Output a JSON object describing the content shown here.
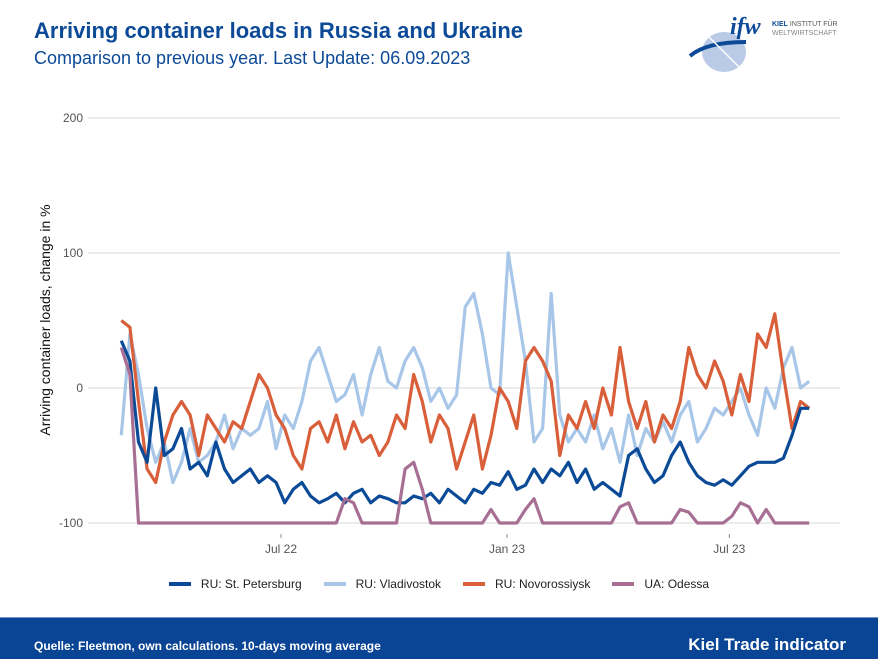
{
  "header": {
    "title": "Arriving container loads in Russia and Ukraine",
    "subtitle": "Comparison to previous year. Last Update: 06.09.2023",
    "logo_text": "ifw KIEL INSTITUT FÜR WELTWIRTSCHAFT"
  },
  "footer": {
    "source": "Quelle: Fleetmon, own calculations. 10-days moving average",
    "brand": "Kiel Trade indicator"
  },
  "chart_data": {
    "type": "line",
    "title": "Arriving container loads in Russia and Ukraine",
    "xlabel": "",
    "ylabel": "Arriving container loads, change in %",
    "ylim": [
      -110,
      205
    ],
    "yticks": [
      200,
      100,
      0,
      -100
    ],
    "ytick_labels": [
      "200",
      "100",
      "0",
      "-100"
    ],
    "xticks": [
      "2022-07-01",
      "2023-01-01",
      "2023-07-01"
    ],
    "xtick_labels": [
      "Jul 22",
      "Jan 23",
      "Jul 23"
    ],
    "grid": "horizontal",
    "legend_position": "bottom",
    "x": [
      "2022-02-21",
      "2022-02-28",
      "2022-03-07",
      "2022-03-14",
      "2022-03-21",
      "2022-03-28",
      "2022-04-04",
      "2022-04-11",
      "2022-04-18",
      "2022-04-25",
      "2022-05-02",
      "2022-05-09",
      "2022-05-16",
      "2022-05-23",
      "2022-05-30",
      "2022-06-06",
      "2022-06-13",
      "2022-06-20",
      "2022-06-27",
      "2022-07-04",
      "2022-07-11",
      "2022-07-18",
      "2022-07-25",
      "2022-08-01",
      "2022-08-08",
      "2022-08-15",
      "2022-08-22",
      "2022-08-29",
      "2022-09-05",
      "2022-09-12",
      "2022-09-19",
      "2022-09-26",
      "2022-10-03",
      "2022-10-10",
      "2022-10-17",
      "2022-10-24",
      "2022-10-31",
      "2022-11-07",
      "2022-11-14",
      "2022-11-21",
      "2022-11-28",
      "2022-12-05",
      "2022-12-12",
      "2022-12-19",
      "2022-12-26",
      "2023-01-02",
      "2023-01-09",
      "2023-01-16",
      "2023-01-23",
      "2023-01-30",
      "2023-02-06",
      "2023-02-13",
      "2023-02-20",
      "2023-02-27",
      "2023-03-06",
      "2023-03-13",
      "2023-03-20",
      "2023-03-27",
      "2023-04-03",
      "2023-04-10",
      "2023-04-17",
      "2023-04-24",
      "2023-05-01",
      "2023-05-08",
      "2023-05-15",
      "2023-05-22",
      "2023-05-29",
      "2023-06-05",
      "2023-06-12",
      "2023-06-19",
      "2023-06-26",
      "2023-07-03",
      "2023-07-10",
      "2023-07-17",
      "2023-07-24",
      "2023-07-31",
      "2023-08-07",
      "2023-08-14",
      "2023-08-21",
      "2023-08-28",
      "2023-09-04"
    ],
    "series": [
      {
        "name": "RU: St. Petersburg",
        "color": "#0b4a96",
        "values": [
          35,
          20,
          -40,
          -55,
          0,
          -50,
          -45,
          -30,
          -60,
          -55,
          -65,
          -40,
          -60,
          -70,
          -65,
          -60,
          -70,
          -65,
          -70,
          -85,
          -75,
          -70,
          -80,
          -85,
          -82,
          -78,
          -85,
          -78,
          -75,
          -85,
          -80,
          -82,
          -85,
          -85,
          -80,
          -82,
          -78,
          -85,
          -75,
          -80,
          -85,
          -75,
          -78,
          -70,
          -72,
          -62,
          -75,
          -72,
          -60,
          -70,
          -60,
          -65,
          -55,
          -70,
          -60,
          -75,
          -70,
          -75,
          -80,
          -50,
          -45,
          -60,
          -70,
          -65,
          -50,
          -40,
          -55,
          -65,
          -70,
          -72,
          -68,
          -72,
          -65,
          -58,
          -55,
          -55,
          -55,
          -52,
          -35,
          -15,
          -15
        ]
      },
      {
        "name": "RU: Vladivostok",
        "color": "#a7c6e8",
        "values": [
          -35,
          40,
          10,
          -30,
          -55,
          -40,
          -70,
          -55,
          -30,
          -55,
          -50,
          -40,
          -20,
          -45,
          -30,
          -35,
          -30,
          -10,
          -45,
          -20,
          -30,
          -10,
          20,
          30,
          10,
          -10,
          -5,
          10,
          -20,
          10,
          30,
          5,
          0,
          20,
          30,
          15,
          -10,
          0,
          -15,
          -5,
          60,
          70,
          40,
          0,
          -5,
          100,
          60,
          20,
          -40,
          -30,
          70,
          -20,
          -40,
          -30,
          -40,
          -20,
          -45,
          -30,
          -55,
          -20,
          -50,
          -30,
          -40,
          -25,
          -40,
          -20,
          -10,
          -40,
          -30,
          -15,
          -20,
          -10,
          0,
          -20,
          -35,
          0,
          -15,
          15,
          30,
          0,
          5
        ]
      },
      {
        "name": "RU: Novorossiysk",
        "color": "#d95f3b",
        "values": [
          50,
          45,
          -10,
          -60,
          -70,
          -40,
          -20,
          -10,
          -20,
          -50,
          -20,
          -30,
          -40,
          -25,
          -30,
          -10,
          10,
          0,
          -20,
          -30,
          -50,
          -60,
          -30,
          -25,
          -40,
          -20,
          -45,
          -25,
          -40,
          -35,
          -50,
          -40,
          -20,
          -30,
          10,
          -10,
          -40,
          -20,
          -30,
          -60,
          -40,
          -20,
          -60,
          -35,
          0,
          -10,
          -30,
          20,
          30,
          20,
          5,
          -50,
          -20,
          -30,
          -10,
          -30,
          0,
          -20,
          30,
          -10,
          -30,
          -10,
          -40,
          -20,
          -30,
          -10,
          30,
          10,
          0,
          20,
          5,
          -20,
          10,
          -10,
          40,
          30,
          55,
          10,
          -30,
          -10,
          -15
        ]
      },
      {
        "name": "UA: Odessa",
        "color": "#a86f94",
        "values": [
          30,
          10,
          -100,
          -100,
          -100,
          -100,
          -100,
          -100,
          -100,
          -100,
          -100,
          -100,
          -100,
          -100,
          -100,
          -100,
          -100,
          -100,
          -100,
          -100,
          -100,
          -100,
          -100,
          -100,
          -100,
          -100,
          -82,
          -85,
          -100,
          -100,
          -100,
          -100,
          -100,
          -60,
          -55,
          -75,
          -100,
          -100,
          -100,
          -100,
          -100,
          -100,
          -100,
          -90,
          -100,
          -100,
          -100,
          -90,
          -82,
          -100,
          -100,
          -100,
          -100,
          -100,
          -100,
          -100,
          -100,
          -100,
          -88,
          -85,
          -100,
          -100,
          -100,
          -100,
          -100,
          -90,
          -92,
          -100,
          -100,
          -100,
          -100,
          -95,
          -85,
          -88,
          -100,
          -90,
          -100,
          -100,
          -100,
          -100,
          -100
        ]
      }
    ]
  }
}
